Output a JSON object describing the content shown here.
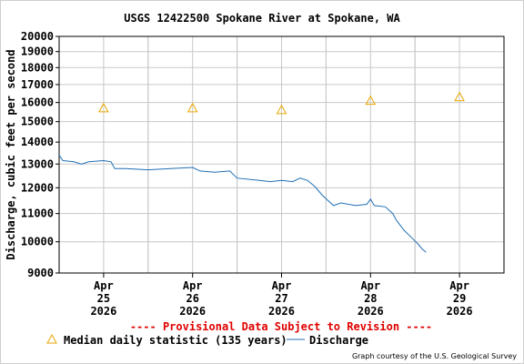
{
  "chart_data": {
    "type": "line",
    "title": "USGS 12422500 Spokane River at Spokane, WA",
    "ylabel": "Discharge, cubic feet per second",
    "y_scale": "log",
    "ylim": [
      9000,
      20000
    ],
    "y_ticks": [
      9000,
      10000,
      11000,
      12000,
      13000,
      14000,
      15000,
      16000,
      17000,
      18000,
      19000,
      20000
    ],
    "y_tick_labels": [
      "9000",
      "10000",
      "11000",
      "12000",
      "13000",
      "14000",
      "15000",
      "16000",
      "17000",
      "18000",
      "19000",
      "20000"
    ],
    "xlim": [
      "2026-04-24T12:00",
      "2026-04-29T12:00"
    ],
    "x_ticks": [
      {
        "x": "2026-04-25T00:00",
        "lines": [
          "Apr",
          "25",
          "2026"
        ]
      },
      {
        "x": "2026-04-26T00:00",
        "lines": [
          "Apr",
          "26",
          "2026"
        ]
      },
      {
        "x": "2026-04-27T00:00",
        "lines": [
          "Apr",
          "27",
          "2026"
        ]
      },
      {
        "x": "2026-04-28T00:00",
        "lines": [
          "Apr",
          "28",
          "2026"
        ]
      },
      {
        "x": "2026-04-29T00:00",
        "lines": [
          "Apr",
          "29",
          "2026"
        ]
      }
    ],
    "grid": true,
    "series": [
      {
        "name": "Discharge",
        "color": "#1f6fb5",
        "points": [
          [
            "2026-04-24T12:00",
            13400
          ],
          [
            "2026-04-24T13:00",
            13150
          ],
          [
            "2026-04-24T16:00",
            13100
          ],
          [
            "2026-04-24T18:00",
            13000
          ],
          [
            "2026-04-24T20:00",
            13100
          ],
          [
            "2026-04-25T00:00",
            13150
          ],
          [
            "2026-04-25T02:00",
            13100
          ],
          [
            "2026-04-25T03:00",
            12800
          ],
          [
            "2026-04-25T06:00",
            12800
          ],
          [
            "2026-04-25T12:00",
            12750
          ],
          [
            "2026-04-25T18:00",
            12800
          ],
          [
            "2026-04-26T00:00",
            12850
          ],
          [
            "2026-04-26T02:00",
            12700
          ],
          [
            "2026-04-26T06:00",
            12650
          ],
          [
            "2026-04-26T10:00",
            12700
          ],
          [
            "2026-04-26T12:00",
            12400
          ],
          [
            "2026-04-26T18:00",
            12300
          ],
          [
            "2026-04-26T21:00",
            12250
          ],
          [
            "2026-04-27T00:00",
            12300
          ],
          [
            "2026-04-27T03:00",
            12250
          ],
          [
            "2026-04-27T05:00",
            12400
          ],
          [
            "2026-04-27T07:00",
            12300
          ],
          [
            "2026-04-27T09:00",
            12050
          ],
          [
            "2026-04-27T11:00",
            11700
          ],
          [
            "2026-04-27T14:00",
            11300
          ],
          [
            "2026-04-27T16:00",
            11400
          ],
          [
            "2026-04-27T20:00",
            11300
          ],
          [
            "2026-04-27T23:00",
            11350
          ],
          [
            "2026-04-28T00:00",
            11550
          ],
          [
            "2026-04-28T01:00",
            11300
          ],
          [
            "2026-04-28T04:00",
            11250
          ],
          [
            "2026-04-28T06:00",
            11000
          ],
          [
            "2026-04-28T07:00",
            10750
          ],
          [
            "2026-04-28T09:00",
            10400
          ],
          [
            "2026-04-28T11:00",
            10150
          ],
          [
            "2026-04-28T13:00",
            9900
          ],
          [
            "2026-04-28T14:00",
            9750
          ],
          [
            "2026-04-28T15:00",
            9650
          ]
        ]
      },
      {
        "name": "Median daily statistic (135 years)",
        "color": "#e8a600",
        "marker": "triangle",
        "points": [
          [
            "2026-04-25T00:00",
            15700
          ],
          [
            "2026-04-26T00:00",
            15700
          ],
          [
            "2026-04-27T00:00",
            15600
          ],
          [
            "2026-04-28T00:00",
            16100
          ],
          [
            "2026-04-29T00:00",
            16300
          ]
        ]
      }
    ],
    "annotation": "---- Provisional Data Subject to Revision ----",
    "annotation_color": "#e00000",
    "legend": {
      "placement": "bottom",
      "items": [
        "Median daily statistic (135 years)",
        "Discharge"
      ]
    },
    "credit": "Graph courtesy of the U.S. Geological Survey"
  }
}
